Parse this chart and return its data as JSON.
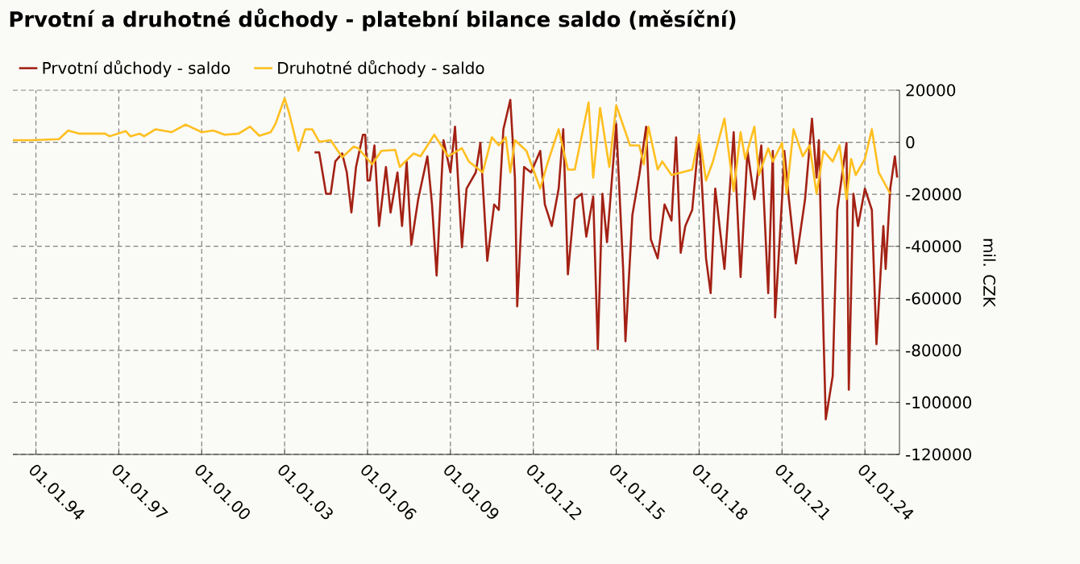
{
  "chart_data": {
    "type": "line",
    "title": "Prvotní a druhotné důchody - platební bilance saldo (měsíční)",
    "ylabel": "mil. CZK",
    "grid": true,
    "legend": "top left",
    "marker": "none",
    "line_style": "solid",
    "xlim": [
      "1993-03",
      "2025-04"
    ],
    "xticks": [
      {
        "value": "1994-01-01",
        "label": "01.01.94"
      },
      {
        "value": "1997-01-01",
        "label": "01.01.97"
      },
      {
        "value": "2000-01-01",
        "label": "01.01.00"
      },
      {
        "value": "2003-01-01",
        "label": "01.01.03"
      },
      {
        "value": "2006-01-01",
        "label": "01.01.06"
      },
      {
        "value": "2009-01-01",
        "label": "01.01.09"
      },
      {
        "value": "2012-01-01",
        "label": "01.01.12"
      },
      {
        "value": "2015-01-01",
        "label": "01.01.15"
      },
      {
        "value": "2018-01-01",
        "label": "01.01.18"
      },
      {
        "value": "2021-01-01",
        "label": "01.01.21"
      },
      {
        "value": "2024-01-01",
        "label": "01.01.24"
      }
    ],
    "ylim": [
      -120000,
      20000
    ],
    "yticks": [
      -120000,
      -100000,
      -80000,
      -60000,
      -40000,
      -20000,
      0,
      20000
    ],
    "series": [
      {
        "name": "Prvotní důchody - saldo",
        "color": "#a32114",
        "x": [
          "2004-02",
          "2004-04",
          "2004-07",
          "2004-09",
          "2004-11",
          "2005-02",
          "2005-04",
          "2005-06",
          "2005-08",
          "2005-11",
          "2005-12",
          "2006-01",
          "2006-02",
          "2006-04",
          "2006-06",
          "2006-09",
          "2006-11",
          "2007-02",
          "2007-04",
          "2007-06",
          "2007-08",
          "2007-11",
          "2008-03",
          "2008-05",
          "2008-07",
          "2008-10",
          "2009-01",
          "2009-03",
          "2009-06",
          "2009-08",
          "2009-12",
          "2010-02",
          "2010-05",
          "2010-08",
          "2010-10",
          "2010-12",
          "2011-03",
          "2011-05",
          "2011-06",
          "2011-09",
          "2011-12",
          "2012-04",
          "2012-06",
          "2012-09",
          "2012-12",
          "2013-02",
          "2013-04",
          "2013-07",
          "2013-10",
          "2013-12",
          "2014-03",
          "2014-05",
          "2014-07",
          "2014-09",
          "2014-11",
          "2015-01",
          "2015-04",
          "2015-05",
          "2015-08",
          "2015-11",
          "2016-02",
          "2016-04",
          "2016-07",
          "2016-10",
          "2017-01",
          "2017-03",
          "2017-05",
          "2017-07",
          "2017-10",
          "2018-01",
          "2018-04",
          "2018-06",
          "2018-08",
          "2018-12",
          "2019-04",
          "2019-07",
          "2019-10",
          "2020-01",
          "2020-04",
          "2020-07",
          "2020-09",
          "2020-10",
          "2021-01",
          "2021-02",
          "2021-04",
          "2021-07",
          "2021-11",
          "2022-02",
          "2022-04",
          "2022-05",
          "2022-07",
          "2022-08",
          "2022-11",
          "2023-01",
          "2023-05",
          "2023-06",
          "2023-08",
          "2023-10",
          "2024-01",
          "2024-04",
          "2024-06",
          "2024-09",
          "2024-10",
          "2024-12",
          "2025-02",
          "2025-03"
        ],
        "values": [
          -3900,
          -3900,
          -19800,
          -19800,
          -7400,
          -4300,
          -11600,
          -27000,
          -9500,
          2900,
          2900,
          -14700,
          -14700,
          -1200,
          -32200,
          -9500,
          -27000,
          -11600,
          -32200,
          -7400,
          -39400,
          -21900,
          -5400,
          -23900,
          -51200,
          800,
          -11600,
          6000,
          -40400,
          -17800,
          -11600,
          -200,
          -45600,
          -23900,
          -26000,
          5000,
          16300,
          -13600,
          -63100,
          -9500,
          -11600,
          -3300,
          -23900,
          -32200,
          -17800,
          5000,
          -50800,
          -21900,
          -19800,
          -36300,
          -20800,
          -79600,
          -19800,
          -38400,
          -15700,
          7000,
          -48700,
          -76500,
          -28000,
          -12600,
          6000,
          -37300,
          -44600,
          -23900,
          -30100,
          1900,
          -42500,
          -32200,
          -26000,
          2900,
          -44600,
          -58000,
          -17800,
          -48700,
          3900,
          -51800,
          -3300,
          -21900,
          -1200,
          -58000,
          -3300,
          -67300,
          -21900,
          -3300,
          -21900,
          -46600,
          -21900,
          9100,
          -13600,
          800,
          -73500,
          -106500,
          -89900,
          -26000,
          -200,
          -95100,
          -19800,
          -32200,
          -17800,
          -26000,
          -77600,
          -32200,
          -48700,
          -17800,
          -5400,
          -13600
        ]
      },
      {
        "name": "Druhotné důchody - saldo",
        "color": "#ffbf1f",
        "x": [
          "1993-03",
          "1993-11",
          "1994-11",
          "1995-03",
          "1995-08",
          "1996-07",
          "1996-09",
          "1997-04",
          "1997-06",
          "1997-10",
          "1997-12",
          "1998-05",
          "1998-12",
          "1999-06",
          "2000-01",
          "2000-06",
          "2000-11",
          "2001-05",
          "2001-10",
          "2002-02",
          "2002-07",
          "2002-09",
          "2003-01",
          "2003-03",
          "2003-07",
          "2003-10",
          "2004-01",
          "2004-04",
          "2004-09",
          "2005-02",
          "2005-07",
          "2005-09",
          "2006-03",
          "2006-07",
          "2007-01",
          "2007-03",
          "2007-09",
          "2007-12",
          "2008-06",
          "2008-12",
          "2009-06",
          "2009-09",
          "2010-03",
          "2010-07",
          "2010-10",
          "2011-01",
          "2011-03",
          "2011-05",
          "2011-10",
          "2012-04",
          "2012-07",
          "2012-12",
          "2013-04",
          "2013-07",
          "2014-01",
          "2014-03",
          "2014-06",
          "2014-10",
          "2015-01",
          "2015-07",
          "2015-11",
          "2016-01",
          "2016-03",
          "2016-07",
          "2016-09",
          "2017-01",
          "2017-10",
          "2018-01",
          "2018-04",
          "2018-07",
          "2018-12",
          "2019-04",
          "2019-07",
          "2019-09",
          "2020-01",
          "2020-03",
          "2020-07",
          "2020-09",
          "2021-01",
          "2021-03",
          "2021-06",
          "2021-10",
          "2022-01",
          "2022-04",
          "2022-07",
          "2022-11",
          "2023-02",
          "2023-05",
          "2023-07",
          "2023-09",
          "2024-01",
          "2024-04",
          "2024-07",
          "2024-12"
        ],
        "values": [
          800,
          800,
          1200,
          4500,
          3300,
          3300,
          2300,
          4300,
          2300,
          3300,
          2300,
          5000,
          3900,
          6800,
          3900,
          4500,
          2900,
          3300,
          6000,
          2500,
          3900,
          7000,
          16900,
          11100,
          -3300,
          5000,
          5000,
          200,
          800,
          -5800,
          -1700,
          -2300,
          -8500,
          -3300,
          -2900,
          -9500,
          -4300,
          -5400,
          2900,
          -5400,
          -2300,
          -7400,
          -11600,
          1900,
          -1200,
          1900,
          -11600,
          800,
          -3300,
          -17800,
          -8500,
          5000,
          -10500,
          -10500,
          15300,
          -13600,
          13200,
          -9500,
          14200,
          -1200,
          -1200,
          -8500,
          6000,
          -10500,
          -7400,
          -12600,
          -10500,
          2900,
          -14700,
          -7400,
          9100,
          -18800,
          3900,
          -6400,
          6000,
          -12600,
          -2300,
          -7400,
          -200,
          -19800,
          5000,
          -5400,
          -1200,
          -19800,
          -3300,
          -7400,
          -1200,
          -21900,
          -6400,
          -12600,
          -6400,
          5000,
          -11600,
          -19800
        ]
      }
    ]
  }
}
